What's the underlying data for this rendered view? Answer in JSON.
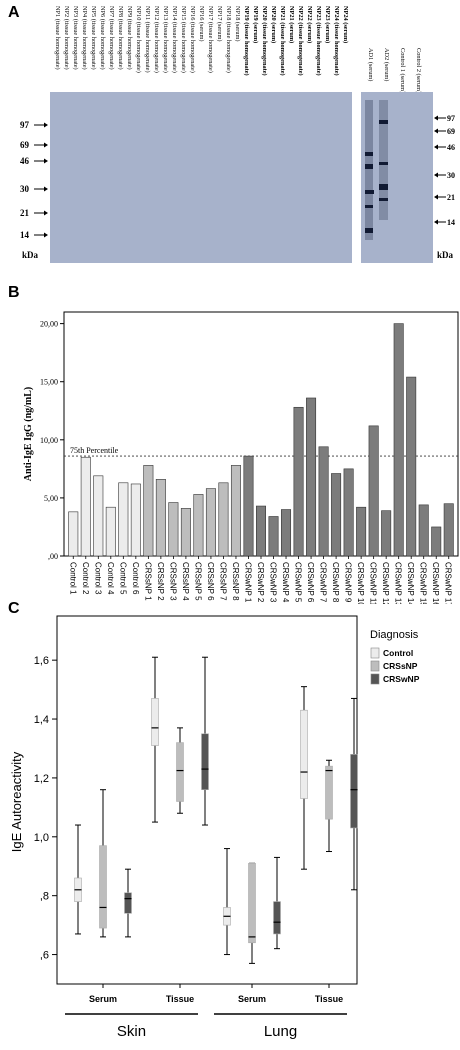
{
  "panel_labels": {
    "a": "A",
    "b": "B",
    "c": "C"
  },
  "panelA": {
    "lanes_left": [
      "NP1 (tissue homogenate)",
      "NP2 (tissue homogenate)",
      "NP3 (tissue homogenate)",
      "NP4 (tissue homogenate)",
      "NP5 (tissue homogenate)",
      "NP6 (tissue homogenate)",
      "NP7 (tissue homogenate)",
      "NP8 (tissue homogenate)",
      "NP9 (tissue homogenate)",
      "NP10 (tissue homogenate)",
      "NP11 (tissue homogenate)",
      "NP12 (tissue homogenate)",
      "NP13 (tissue homogenate)",
      "NP14 (tissue homogenate)",
      "NP15 (tissue homogenate)",
      "NP16 (tissue homogenate)",
      "NP16 (serum)",
      "NP17 (tissue homogenate)",
      "NP17 (serum)",
      "NP18 (tissue homogenate)",
      "NP18 (serum)",
      "NP19 (tissue homogenate)",
      "NP19 (serum)",
      "NP20 (tissue homogenate)",
      "NP20 (serum)",
      "NP21 (tissue homogenate)",
      "NP21 (serum)",
      "NP22 (tissue homogenate)",
      "NP22 (serum)",
      "NP23 (tissue homogenate)",
      "NP23 (serum)",
      "NP24 (tissue homogenate)",
      "NP24 (serum)"
    ],
    "lanes_right": [
      "AD1 (serum)",
      "AD2 (serum)",
      "Control 1 (serum)",
      "Control 2 (serum)"
    ],
    "markers_left": [
      "97",
      "69",
      "46",
      "30",
      "21",
      "14"
    ],
    "markers_right": [
      "97",
      "69",
      "46",
      "30",
      "21",
      "14"
    ],
    "kda_label": "kDa",
    "blot_color": "#a7b2cb"
  },
  "chart_data": [
    {
      "type": "bar",
      "ylabel": "Anti-IgE IgG (ng/mL)",
      "ylim": [
        0,
        21
      ],
      "yticks": [
        ",00",
        "5,00",
        "10,00",
        "15,00",
        "20,00"
      ],
      "reference_line": {
        "label": "75th Percentile",
        "value": 8.6
      },
      "categories": [
        "Control 1",
        "Control 2",
        "Control 3",
        "Control 4",
        "Control 5",
        "Control 6",
        "CRSsNP 1",
        "CRSsNP 2",
        "CRSsNP 3",
        "CRSsNP 4",
        "CRSsNP 5",
        "CRSsNP 6",
        "CRSsNP 7",
        "CRSsNP 8",
        "CRSwNP 1",
        "CRSwNP 2",
        "CRSwNP 3",
        "CRSwNP 4",
        "CRSwNP 5",
        "CRSwNP 6",
        "CRSwNP 7",
        "CRSwNP 8",
        "CRSwNP 9",
        "CRSwNP 10",
        "CRSwNP 11",
        "CRSwNP 12",
        "CRSwNP 13",
        "CRSwNP 14",
        "CRSwNP 15",
        "CRSwNP 16",
        "CRSwNP 17"
      ],
      "values": [
        3.8,
        8.5,
        6.9,
        4.2,
        6.3,
        6.2,
        7.8,
        6.6,
        4.6,
        4.1,
        5.3,
        5.8,
        6.3,
        7.8,
        8.6,
        4.3,
        3.4,
        4.0,
        12.8,
        13.6,
        9.4,
        7.1,
        7.5,
        4.2,
        11.2,
        3.9,
        20.0,
        15.4,
        4.4,
        2.5,
        4.5
      ],
      "groups": [
        "Control",
        "Control",
        "Control",
        "Control",
        "Control",
        "Control",
        "CRSsNP",
        "CRSsNP",
        "CRSsNP",
        "CRSsNP",
        "CRSsNP",
        "CRSsNP",
        "CRSsNP",
        "CRSsNP",
        "CRSwNP",
        "CRSwNP",
        "CRSwNP",
        "CRSwNP",
        "CRSwNP",
        "CRSwNP",
        "CRSwNP",
        "CRSwNP",
        "CRSwNP",
        "CRSwNP",
        "CRSwNP",
        "CRSwNP",
        "CRSwNP",
        "CRSwNP",
        "CRSwNP",
        "CRSwNP",
        "CRSwNP"
      ],
      "group_colors": {
        "Control": "#ececec",
        "CRSsNP": "#bdbdbd",
        "CRSwNP": "#7c7c7c"
      }
    },
    {
      "type": "box",
      "ylabel": "IgE Autoreactivity",
      "ylim": [
        0.5,
        1.75
      ],
      "yticks": [
        {
          "value": 0.6,
          "label": ",6"
        },
        {
          "value": 0.8,
          "label": ",8"
        },
        {
          "value": 1.0,
          "label": "1,0"
        },
        {
          "value": 1.2,
          "label": "1,2"
        },
        {
          "value": 1.4,
          "label": "1,4"
        },
        {
          "value": 1.6,
          "label": "1,6"
        }
      ],
      "legend": {
        "title": "Diagnosis",
        "placement": "top-right",
        "entries": [
          "Control",
          "CRSsNP",
          "CRSwNP"
        ]
      },
      "series_colors": {
        "Control": "#ececec",
        "CRSsNP": "#bdbdbd",
        "CRSwNP": "#555555"
      },
      "categories": [
        "Serum",
        "Tissue",
        "Serum",
        "Tissue"
      ],
      "category_groups": [
        {
          "label": "Skin",
          "members": [
            0,
            1
          ]
        },
        {
          "label": "Lung",
          "members": [
            2,
            3
          ]
        }
      ],
      "series": [
        {
          "name": "Control",
          "boxes": [
            {
              "min": 0.67,
              "q1": 0.78,
              "median": 0.82,
              "q3": 0.86,
              "max": 1.04
            },
            {
              "min": 1.05,
              "q1": 1.31,
              "median": 1.37,
              "q3": 1.47,
              "max": 1.61
            },
            {
              "min": 0.6,
              "q1": 0.7,
              "median": 0.73,
              "q3": 0.76,
              "max": 0.96
            },
            {
              "min": 0.89,
              "q1": 1.13,
              "median": 1.22,
              "q3": 1.43,
              "max": 1.51
            }
          ]
        },
        {
          "name": "CRSsNP",
          "boxes": [
            {
              "min": 0.66,
              "q1": 0.69,
              "median": 0.76,
              "q3": 0.97,
              "max": 1.16
            },
            {
              "min": 1.08,
              "q1": 1.12,
              "median": 1.225,
              "q3": 1.32,
              "max": 1.37
            },
            {
              "min": 0.57,
              "q1": 0.64,
              "median": 0.66,
              "q3": 0.91,
              "max": 0.91
            },
            {
              "min": 0.95,
              "q1": 1.06,
              "median": 1.225,
              "q3": 1.24,
              "max": 1.26
            }
          ]
        },
        {
          "name": "CRSwNP",
          "boxes": [
            {
              "min": 0.66,
              "q1": 0.74,
              "median": 0.79,
              "q3": 0.81,
              "max": 0.89
            },
            {
              "min": 1.04,
              "q1": 1.16,
              "median": 1.23,
              "q3": 1.35,
              "max": 1.61
            },
            {
              "min": 0.62,
              "q1": 0.67,
              "median": 0.71,
              "q3": 0.78,
              "max": 0.93
            },
            {
              "min": 0.82,
              "q1": 1.03,
              "median": 1.16,
              "q3": 1.28,
              "max": 1.47
            }
          ]
        }
      ]
    }
  ]
}
